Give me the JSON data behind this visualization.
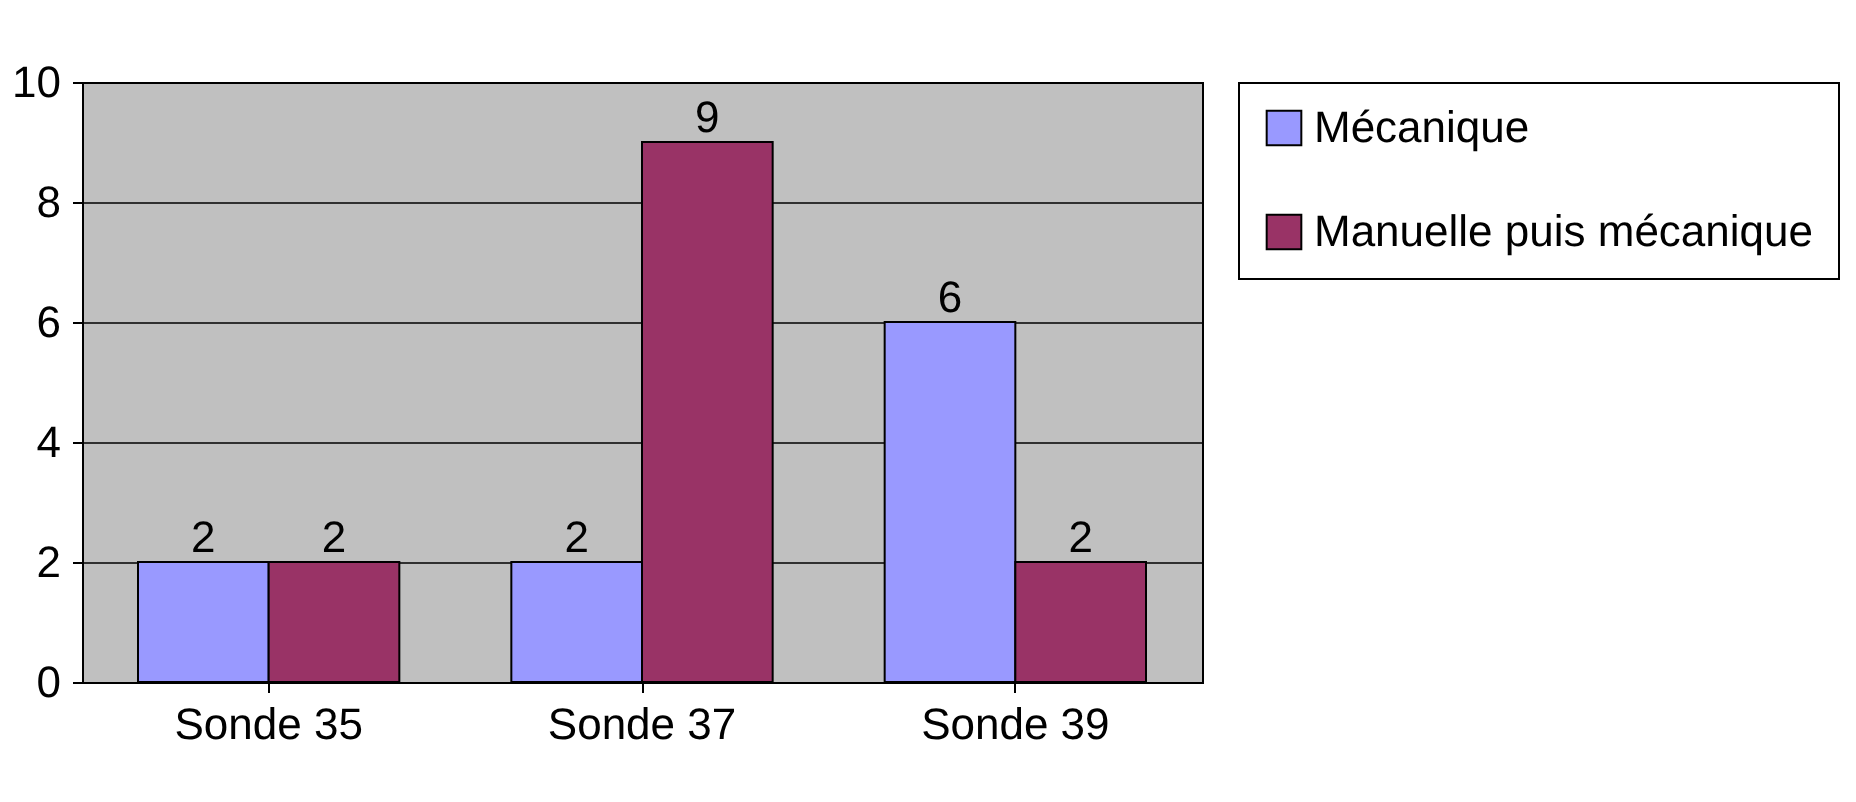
{
  "chart_data": {
    "type": "bar",
    "categories": [
      "Sonde 35",
      "Sonde 37",
      "Sonde 39"
    ],
    "series": [
      {
        "name": "Mécanique",
        "color": "#9999ff",
        "values": [
          2,
          2,
          6
        ]
      },
      {
        "name": "Manuelle puis mécanique",
        "color": "#993366",
        "values": [
          2,
          9,
          2
        ]
      }
    ],
    "ylim": [
      0,
      10
    ],
    "yticks": [
      0,
      2,
      4,
      6,
      8,
      10
    ],
    "grid": "y",
    "legend": "right",
    "data_labels": true
  }
}
